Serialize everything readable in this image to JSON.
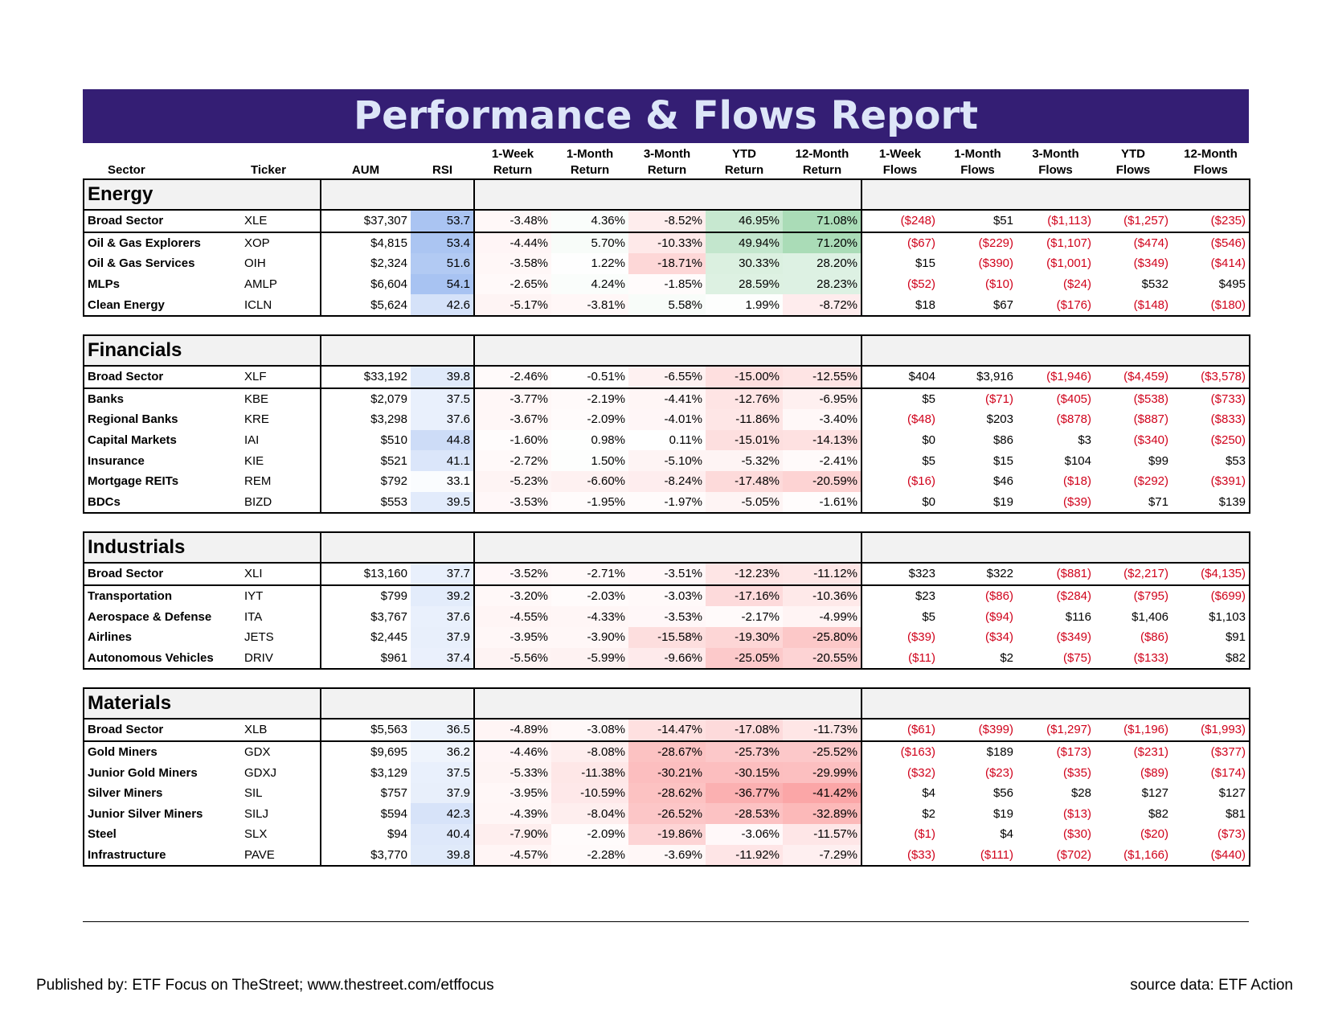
{
  "title": "Performance & Flows Report",
  "colors": {
    "banner": "#341e74",
    "title_text": "#dde6f8",
    "negative_flow": "#d0021b",
    "rsi_fill": "#5b8ee6",
    "pos_fill": "#63be7b",
    "neg_fill": "#f8696b"
  },
  "headers": {
    "sector": "Sector",
    "ticker": "Ticker",
    "aum": "AUM",
    "rsi": "RSI",
    "r1w": [
      "1-Week",
      "Return"
    ],
    "r1m": [
      "1-Month",
      "Return"
    ],
    "r3m": [
      "3-Month",
      "Return"
    ],
    "rytd": [
      "YTD",
      "Return"
    ],
    "r12m": [
      "12-Month",
      "Return"
    ],
    "f1w": [
      "1-Week",
      "Flows"
    ],
    "f1m": [
      "1-Month",
      "Flows"
    ],
    "f3m": [
      "3-Month",
      "Flows"
    ],
    "fytd": [
      "YTD",
      "Flows"
    ],
    "f12m": [
      "12-Month",
      "Flows"
    ]
  },
  "groups": [
    {
      "name": "Energy",
      "rows": [
        [
          "Broad Sector",
          "XLE",
          "$37,307",
          "53.7",
          "-3.48%",
          "4.36%",
          "-8.52%",
          "46.95%",
          "71.08%",
          "($248)",
          "$51",
          "($1,113)",
          "($1,257)",
          "($235)"
        ],
        [
          "Oil & Gas Explorers",
          "XOP",
          "$4,815",
          "53.4",
          "-4.44%",
          "5.70%",
          "-10.33%",
          "49.94%",
          "71.20%",
          "($67)",
          "($229)",
          "($1,107)",
          "($474)",
          "($546)"
        ],
        [
          "Oil & Gas Services",
          "OIH",
          "$2,324",
          "51.6",
          "-3.58%",
          "1.22%",
          "-18.71%",
          "30.33%",
          "28.20%",
          "$15",
          "($390)",
          "($1,001)",
          "($349)",
          "($414)"
        ],
        [
          "MLPs",
          "AMLP",
          "$6,604",
          "54.1",
          "-2.65%",
          "4.24%",
          "-1.85%",
          "28.59%",
          "28.23%",
          "($52)",
          "($10)",
          "($24)",
          "$532",
          "$495"
        ],
        [
          "Clean Energy",
          "ICLN",
          "$5,624",
          "42.6",
          "-5.17%",
          "-3.81%",
          "5.58%",
          "1.99%",
          "-8.72%",
          "$18",
          "$67",
          "($176)",
          "($148)",
          "($180)"
        ]
      ]
    },
    {
      "name": "Financials",
      "rows": [
        [
          "Broad Sector",
          "XLF",
          "$33,192",
          "39.8",
          "-2.46%",
          "-0.51%",
          "-6.55%",
          "-15.00%",
          "-12.55%",
          "$404",
          "$3,916",
          "($1,946)",
          "($4,459)",
          "($3,578)"
        ],
        [
          "Banks",
          "KBE",
          "$2,079",
          "37.5",
          "-3.77%",
          "-2.19%",
          "-4.41%",
          "-12.76%",
          "-6.95%",
          "$5",
          "($71)",
          "($405)",
          "($538)",
          "($733)"
        ],
        [
          "Regional Banks",
          "KRE",
          "$3,298",
          "37.6",
          "-3.67%",
          "-2.09%",
          "-4.01%",
          "-11.86%",
          "-3.40%",
          "($48)",
          "$203",
          "($878)",
          "($887)",
          "($833)"
        ],
        [
          "Capital Markets",
          "IAI",
          "$510",
          "44.8",
          "-1.60%",
          "0.98%",
          "0.11%",
          "-15.01%",
          "-14.13%",
          "$0",
          "$86",
          "$3",
          "($340)",
          "($250)"
        ],
        [
          "Insurance",
          "KIE",
          "$521",
          "41.1",
          "-2.72%",
          "1.50%",
          "-5.10%",
          "-5.32%",
          "-2.41%",
          "$5",
          "$15",
          "$104",
          "$99",
          "$53"
        ],
        [
          "Mortgage REITs",
          "REM",
          "$792",
          "33.1",
          "-5.23%",
          "-6.60%",
          "-8.24%",
          "-17.48%",
          "-20.59%",
          "($16)",
          "$46",
          "($18)",
          "($292)",
          "($391)"
        ],
        [
          "BDCs",
          "BIZD",
          "$553",
          "39.5",
          "-3.53%",
          "-1.95%",
          "-1.97%",
          "-5.05%",
          "-1.61%",
          "$0",
          "$19",
          "($39)",
          "$71",
          "$139"
        ]
      ]
    },
    {
      "name": "Industrials",
      "rows": [
        [
          "Broad Sector",
          "XLI",
          "$13,160",
          "37.7",
          "-3.52%",
          "-2.71%",
          "-3.51%",
          "-12.23%",
          "-11.12%",
          "$323",
          "$322",
          "($881)",
          "($2,217)",
          "($4,135)"
        ],
        [
          "Transportation",
          "IYT",
          "$799",
          "39.2",
          "-3.20%",
          "-2.03%",
          "-3.03%",
          "-17.16%",
          "-10.36%",
          "$23",
          "($86)",
          "($284)",
          "($795)",
          "($699)"
        ],
        [
          "Aerospace & Defense",
          "ITA",
          "$3,767",
          "37.6",
          "-4.55%",
          "-4.33%",
          "-3.53%",
          "-2.17%",
          "-4.99%",
          "$5",
          "($94)",
          "$116",
          "$1,406",
          "$1,103"
        ],
        [
          "Airlines",
          "JETS",
          "$2,445",
          "37.9",
          "-3.95%",
          "-3.90%",
          "-15.58%",
          "-19.30%",
          "-25.80%",
          "($39)",
          "($34)",
          "($349)",
          "($86)",
          "$91"
        ],
        [
          "Autonomous Vehicles",
          "DRIV",
          "$961",
          "37.4",
          "-5.56%",
          "-5.99%",
          "-9.66%",
          "-25.05%",
          "-20.55%",
          "($11)",
          "$2",
          "($75)",
          "($133)",
          "$82"
        ]
      ]
    },
    {
      "name": "Materials",
      "rows": [
        [
          "Broad Sector",
          "XLB",
          "$5,563",
          "36.5",
          "-4.89%",
          "-3.08%",
          "-14.47%",
          "-17.08%",
          "-11.73%",
          "($61)",
          "($399)",
          "($1,297)",
          "($1,196)",
          "($1,993)"
        ],
        [
          "Gold Miners",
          "GDX",
          "$9,695",
          "36.2",
          "-4.46%",
          "-8.08%",
          "-28.67%",
          "-25.73%",
          "-25.52%",
          "($163)",
          "$189",
          "($173)",
          "($231)",
          "($377)"
        ],
        [
          "Junior Gold Miners",
          "GDXJ",
          "$3,129",
          "37.5",
          "-5.33%",
          "-11.38%",
          "-30.21%",
          "-30.15%",
          "-29.99%",
          "($32)",
          "($23)",
          "($35)",
          "($89)",
          "($174)"
        ],
        [
          "Silver Miners",
          "SIL",
          "$757",
          "37.9",
          "-3.95%",
          "-10.59%",
          "-28.62%",
          "-36.77%",
          "-41.42%",
          "$4",
          "$56",
          "$28",
          "$127",
          "$127"
        ],
        [
          "Junior Silver Miners",
          "SILJ",
          "$594",
          "42.3",
          "-4.39%",
          "-8.04%",
          "-26.52%",
          "-28.53%",
          "-32.89%",
          "$2",
          "$19",
          "($13)",
          "$82",
          "$81"
        ],
        [
          "Steel",
          "SLX",
          "$94",
          "40.4",
          "-7.90%",
          "-2.09%",
          "-19.86%",
          "-3.06%",
          "-11.57%",
          "($1)",
          "$4",
          "($30)",
          "($20)",
          "($73)"
        ],
        [
          "Infrastructure",
          "PAVE",
          "$3,770",
          "39.8",
          "-4.57%",
          "-2.28%",
          "-3.69%",
          "-11.92%",
          "-7.29%",
          "($33)",
          "($111)",
          "($702)",
          "($1,166)",
          "($440)"
        ]
      ]
    }
  ],
  "footer": {
    "left": "Published by: ETF Focus on TheStreet; www.thestreet.com/etffocus",
    "right": "source data: ETF Action"
  }
}
